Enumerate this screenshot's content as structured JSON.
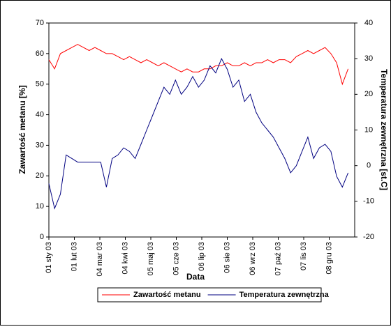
{
  "chart_data": {
    "type": "line",
    "x_label": "Data",
    "y_label": "Zawartość metanu [%]",
    "y2_label": "Temperatura zewnętrzna [st.C]",
    "x": [
      "2003-01-01",
      "2003-01-08",
      "2003-01-15",
      "2003-01-22",
      "2003-01-29",
      "2003-02-05",
      "2003-02-12",
      "2003-02-19",
      "2003-02-26",
      "2003-03-05",
      "2003-03-12",
      "2003-03-19",
      "2003-03-26",
      "2003-04-02",
      "2003-04-09",
      "2003-04-16",
      "2003-04-23",
      "2003-04-30",
      "2003-05-07",
      "2003-05-14",
      "2003-05-21",
      "2003-05-28",
      "2003-06-04",
      "2003-06-11",
      "2003-06-18",
      "2003-06-25",
      "2003-07-02",
      "2003-07-09",
      "2003-07-16",
      "2003-07-23",
      "2003-07-30",
      "2003-08-06",
      "2003-08-13",
      "2003-08-20",
      "2003-08-27",
      "2003-09-03",
      "2003-09-10",
      "2003-09-17",
      "2003-09-24",
      "2003-10-01",
      "2003-10-08",
      "2003-10-15",
      "2003-10-22",
      "2003-10-29",
      "2003-11-05",
      "2003-11-12",
      "2003-11-19",
      "2003-11-26",
      "2003-12-03",
      "2003-12-10",
      "2003-12-17",
      "2003-12-24",
      "2003-12-31"
    ],
    "series": [
      {
        "name": "Zawartość metanu",
        "color": "#ff0000",
        "axis": "y",
        "values": [
          58,
          55,
          60,
          61,
          62,
          63,
          62,
          61,
          62,
          61,
          60,
          60,
          59,
          58,
          59,
          58,
          57,
          58,
          57,
          56,
          57,
          56,
          55,
          54,
          55,
          54,
          54,
          55,
          55,
          56,
          56,
          57,
          56,
          56,
          57,
          56,
          57,
          57,
          58,
          57,
          58,
          58,
          57,
          59,
          60,
          61,
          60,
          61,
          62,
          60,
          57,
          50,
          55
        ]
      },
      {
        "name": "Temperatura zewnętrzna",
        "color": "#000080",
        "axis": "y2",
        "values": [
          -5,
          -12,
          -8,
          3,
          2,
          1,
          1,
          1,
          1,
          1,
          -6,
          2,
          3,
          5,
          4,
          2,
          6,
          10,
          14,
          18,
          22,
          20,
          24,
          20,
          22,
          25,
          22,
          24,
          28,
          26,
          30,
          27,
          22,
          24,
          18,
          20,
          15,
          12,
          10,
          8,
          5,
          2,
          -2,
          0,
          4,
          8,
          2,
          5,
          6,
          4,
          -3,
          -6,
          -2
        ]
      }
    ],
    "xlim": [
      "2003-01-01",
      "2004-01-08"
    ],
    "xticks": [
      {
        "value": "2003-01-01",
        "label": "01 sty 03"
      },
      {
        "value": "2003-02-01",
        "label": "01 lut 03"
      },
      {
        "value": "2003-03-04",
        "label": "04 mar 03"
      },
      {
        "value": "2003-04-04",
        "label": "04 kwi 03"
      },
      {
        "value": "2003-05-05",
        "label": "05 maj 03"
      },
      {
        "value": "2003-06-05",
        "label": "05 cze 03"
      },
      {
        "value": "2003-07-06",
        "label": "06 lip 03"
      },
      {
        "value": "2003-08-06",
        "label": "06 sie 03"
      },
      {
        "value": "2003-09-06",
        "label": "06 wrz 03"
      },
      {
        "value": "2003-10-07",
        "label": "07 paź 03"
      },
      {
        "value": "2003-11-07",
        "label": "07 lis 03"
      },
      {
        "value": "2003-12-08",
        "label": "08 gru 03"
      }
    ],
    "ylim": [
      0,
      70
    ],
    "yticks": [
      0,
      10,
      20,
      30,
      40,
      50,
      60,
      70
    ],
    "y2lim": [
      -20,
      40
    ],
    "y2ticks": [
      -20,
      -10,
      0,
      10,
      20,
      30,
      40
    ],
    "legend": "bottom"
  }
}
